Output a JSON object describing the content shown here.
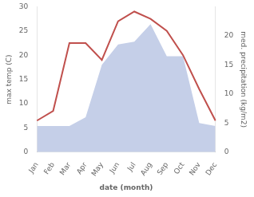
{
  "chart_data": {
    "type": "line",
    "categories": [
      "Jan",
      "Feb",
      "Mar",
      "Apr",
      "May",
      "Jun",
      "Jul",
      "Aug",
      "Sep",
      "Oct",
      "Nov",
      "Dec"
    ],
    "series": [
      {
        "type": "area",
        "color": "#c5cfe8",
        "axis": "y2",
        "values": [
          4.5,
          4.5,
          4.5,
          6.0,
          15.0,
          18.5,
          19.0,
          22.0,
          16.5,
          16.5,
          5.0,
          4.5
        ]
      },
      {
        "type": "line",
        "color": "#c0504d",
        "values": [
          6.5,
          8.5,
          22.5,
          22.5,
          19.0,
          27.0,
          29.0,
          27.5,
          25.0,
          20.0,
          13.0,
          6.5
        ]
      }
    ],
    "xlabel": "date (month)",
    "ylabel": "max temp (C)",
    "y2label": "med. precipitation (kg/m2)",
    "ylim": [
      0,
      30
    ],
    "yticks": [
      0,
      5,
      10,
      15,
      20,
      25,
      30
    ],
    "y2lim": [
      0,
      25
    ],
    "y2ticks": [
      0,
      5,
      10,
      15,
      20
    ],
    "grid": false
  }
}
